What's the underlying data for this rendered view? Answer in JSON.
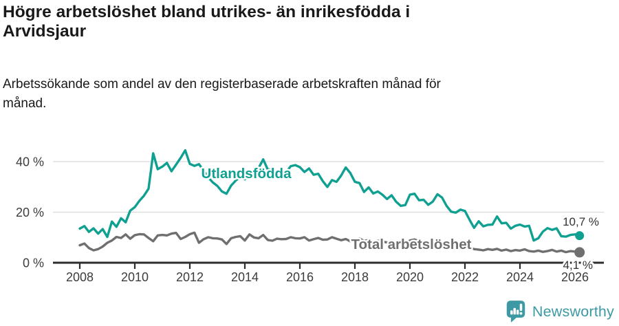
{
  "header": {
    "title": "Högre arbetslöshet bland utrikes- än inrikesfödda i\nArvidsjaur",
    "subtitle": "Arbetssökande som andel av den registerbaserade arbetskraften månad för\nmånad."
  },
  "chart_data": {
    "type": "line",
    "title": "Högre arbetslöshet bland utrikes- än inrikesfödda i Arvidsjaur",
    "subtitle": "Arbetssökande som andel av den registerbaserade arbetskraften månad för månad.",
    "unit": "%",
    "grid": true,
    "x_axis": {
      "start_year": 2008,
      "points_per_year": 6,
      "tick_years": [
        2008,
        2010,
        2012,
        2014,
        2016,
        2018,
        2020,
        2022,
        2024,
        2026
      ]
    },
    "y_axis": {
      "range": [
        0,
        47
      ],
      "ticks": [
        {
          "value": 0,
          "label": "0 %"
        },
        {
          "value": 20,
          "label": "20 %"
        },
        {
          "value": 40,
          "label": "40 %"
        }
      ]
    },
    "series": [
      {
        "name": "Utlandsfödda",
        "color": "#10a091",
        "end_value": 10.7,
        "end_label": "10,7 %",
        "values": [
          13.5,
          14.5,
          12.2,
          13.6,
          11.5,
          13.3,
          10.2,
          16.3,
          14.2,
          17.6,
          16.0,
          20.6,
          22.0,
          24.5,
          26.5,
          29.3,
          43.3,
          37.0,
          38.0,
          39.5,
          36.2,
          38.8,
          41.5,
          44.5,
          39.1,
          38.3,
          39.0,
          36.5,
          33.8,
          31.8,
          30.4,
          28.2,
          27.3,
          30.5,
          32.5,
          34.0,
          33.0,
          35.2,
          33.6,
          37.5,
          40.9,
          36.9,
          36.9,
          35.0,
          34.6,
          35.8,
          38.2,
          38.6,
          37.8,
          35.9,
          37.3,
          34.8,
          35.2,
          32.3,
          30.0,
          32.7,
          32.0,
          34.5,
          37.7,
          35.5,
          32.0,
          31.5,
          28.0,
          29.8,
          27.4,
          28.2,
          26.9,
          25.2,
          26.7,
          24.1,
          22.5,
          22.8,
          26.9,
          27.3,
          24.7,
          24.9,
          22.9,
          24.2,
          27.1,
          25.8,
          22.5,
          20.2,
          19.8,
          21.0,
          20.5,
          17.0,
          13.8,
          16.4,
          14.4,
          15.0,
          15.1,
          18.3,
          15.6,
          15.8,
          13.5,
          14.6,
          15.1,
          14.3,
          14.6,
          8.8,
          9.7,
          12.3,
          13.7,
          13.0,
          13.6,
          10.5,
          10.3,
          11.0,
          11.2,
          10.7
        ]
      },
      {
        "name": "Total arbetslöshet",
        "color": "#6f6f6f",
        "end_value": 4.1,
        "end_label": "4,1 %",
        "values": [
          6.9,
          7.6,
          5.8,
          4.9,
          5.4,
          6.4,
          7.9,
          8.8,
          10.2,
          9.8,
          11.2,
          9.5,
          10.9,
          11.3,
          11.2,
          9.8,
          8.5,
          10.8,
          11.0,
          10.8,
          11.5,
          11.8,
          9.4,
          10.2,
          11.3,
          11.9,
          7.9,
          9.3,
          10.1,
          9.7,
          9.6,
          9.2,
          7.4,
          9.7,
          10.2,
          10.5,
          8.8,
          11.2,
          10.0,
          9.7,
          11.0,
          9.0,
          8.7,
          9.5,
          9.3,
          9.4,
          10.1,
          9.7,
          9.6,
          10.1,
          8.8,
          9.3,
          9.8,
          9.1,
          9.2,
          10.1,
          9.5,
          8.9,
          9.4,
          8.5,
          8.9,
          9.6,
          8.6,
          9.0,
          8.3,
          8.7,
          8.4,
          8.0,
          8.5,
          7.8,
          8.2,
          7.6,
          8.8,
          9.2,
          8.5,
          8.1,
          7.8,
          7.4,
          7.6,
          7.9,
          7.2,
          6.8,
          6.5,
          6.2,
          6.3,
          6.0,
          5.4,
          5.2,
          4.9,
          5.4,
          5.1,
          5.5,
          4.8,
          5.2,
          4.6,
          5.0,
          4.8,
          5.3,
          4.6,
          4.4,
          4.8,
          4.3,
          4.6,
          5.1,
          4.4,
          4.8,
          4.2,
          4.6,
          4.4,
          4.1
        ]
      }
    ]
  },
  "footer": {
    "brand": "Newsworthy",
    "brand_color": "#3d99a3",
    "logo_icon": "bar-chart-speech-bubble-icon"
  }
}
